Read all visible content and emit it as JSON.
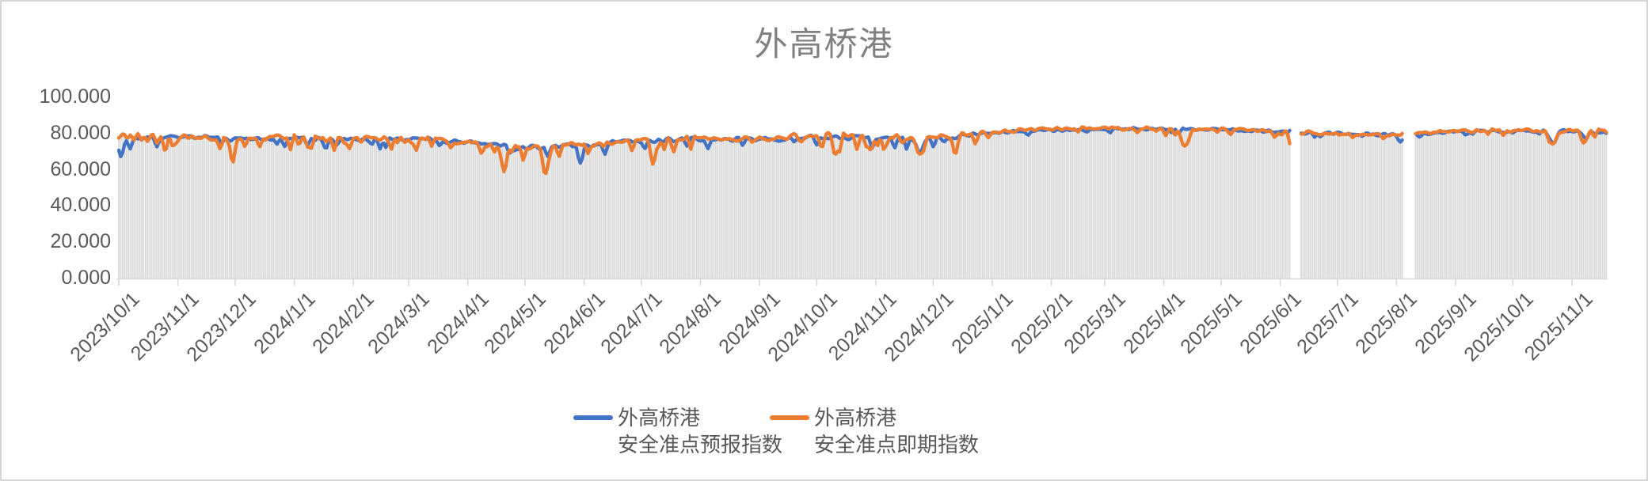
{
  "window": {
    "background": "#FFFFFF",
    "frame_border_color": "#D6D6D6"
  },
  "chart": {
    "title": "外高桥港",
    "title_color": "#808080",
    "axis_text_color": "#595959",
    "axis_line_color": "#D9D9D9",
    "bar_color": "#D9D9D9",
    "plot_background": "#FFFFFF"
  },
  "legend": {
    "items": [
      {
        "line1": "外高桥港",
        "line2": "安全准点预报指数",
        "color": "#4472C4"
      },
      {
        "line1": "外高桥港",
        "line2": "安全准点即期指数",
        "color": "#ED7D31"
      }
    ]
  },
  "chart_data": {
    "type": "line",
    "subtype": "two smoothed daily lines over gray daily columns",
    "title": "外高桥港",
    "xlabel": "",
    "ylabel": "",
    "ylim": [
      0,
      100
    ],
    "grid": "off",
    "legend_position": "bottom",
    "x_start": "2023/10/1",
    "x_end": "2025/11/19",
    "x_tick_labels": [
      "2023/10/1",
      "2023/11/1",
      "2023/12/1",
      "2024/1/1",
      "2024/2/1",
      "2024/3/1",
      "2024/4/1",
      "2024/5/1",
      "2024/6/1",
      "2024/7/1",
      "2024/8/1",
      "2024/9/1",
      "2024/10/1",
      "2024/11/1",
      "2024/12/1",
      "2025/1/1",
      "2025/2/1",
      "2025/3/1",
      "2025/4/1",
      "2025/5/1",
      "2025/6/1",
      "2025/7/1",
      "2025/8/1",
      "2025/9/1",
      "2025/10/1",
      "2025/11/1"
    ],
    "y_ticks": [
      {
        "value": 0,
        "label": "0.000"
      },
      {
        "value": 20,
        "label": "20.000"
      },
      {
        "value": 40,
        "label": "40.000"
      },
      {
        "value": 60,
        "label": "60.000"
      },
      {
        "value": 80,
        "label": "80.000"
      },
      {
        "value": 100,
        "label": "100.000"
      }
    ],
    "gaps": [
      {
        "from": "2025/6/7",
        "to": "2025/6/11"
      },
      {
        "from": "2025/8/5",
        "to": "2025/8/10"
      }
    ],
    "series": [
      {
        "name": "外高桥港安全准点预报指数",
        "color": "#4472C4",
        "anchors": [
          [
            "2023/10/1",
            77
          ],
          [
            "2023/11/1",
            78
          ],
          [
            "2023/12/1",
            76.5
          ],
          [
            "2024/1/1",
            77
          ],
          [
            "2024/2/1",
            76
          ],
          [
            "2024/3/1",
            77
          ],
          [
            "2024/4/1",
            74.5
          ],
          [
            "2024/5/1",
            71.5
          ],
          [
            "2024/6/1",
            73
          ],
          [
            "2024/7/1",
            75.5
          ],
          [
            "2024/8/1",
            76.5
          ],
          [
            "2024/9/1",
            76
          ],
          [
            "2024/10/1",
            78
          ],
          [
            "2024/11/1",
            77
          ],
          [
            "2024/12/1",
            76.5
          ],
          [
            "2025/1/1",
            80
          ],
          [
            "2025/2/1",
            81.5
          ],
          [
            "2025/3/1",
            82
          ],
          [
            "2025/4/1",
            82
          ],
          [
            "2025/5/1",
            82
          ],
          [
            "2025/6/1",
            80.5
          ],
          [
            "2025/7/1",
            79.5
          ],
          [
            "2025/8/1",
            79
          ],
          [
            "2025/9/1",
            80.5
          ],
          [
            "2025/10/1",
            81
          ],
          [
            "2025/11/1",
            81
          ],
          [
            "2025/11/19",
            80.5
          ]
        ]
      },
      {
        "name": "外高桥港安全准点即期指数",
        "color": "#ED7D31",
        "anchors": [
          [
            "2023/10/1",
            78.5
          ],
          [
            "2023/11/1",
            78.5
          ],
          [
            "2023/12/1",
            77
          ],
          [
            "2024/1/1",
            77.5
          ],
          [
            "2024/2/1",
            76.5
          ],
          [
            "2024/3/1",
            77.5
          ],
          [
            "2024/4/1",
            74.5
          ],
          [
            "2024/5/1",
            71.5
          ],
          [
            "2024/6/1",
            73.5
          ],
          [
            "2024/7/1",
            76
          ],
          [
            "2024/8/1",
            77
          ],
          [
            "2024/9/1",
            76.5
          ],
          [
            "2024/10/1",
            78.5
          ],
          [
            "2024/11/1",
            77.5
          ],
          [
            "2024/12/1",
            77
          ],
          [
            "2025/1/1",
            80.5
          ],
          [
            "2025/2/1",
            82
          ],
          [
            "2025/3/1",
            82.5
          ],
          [
            "2025/4/1",
            82
          ],
          [
            "2025/5/1",
            82
          ],
          [
            "2025/6/1",
            80.5
          ],
          [
            "2025/7/1",
            79.5
          ],
          [
            "2025/8/1",
            79
          ],
          [
            "2025/9/1",
            81
          ],
          [
            "2025/10/1",
            81.5
          ],
          [
            "2025/11/1",
            81
          ],
          [
            "2025/11/19",
            81
          ]
        ]
      }
    ],
    "noise": {
      "seed": 20231001,
      "blue_amp_early": 1.7,
      "blue_amp_late": 1.1,
      "orange_amp_early": 2.1,
      "orange_amp_late": 1.3,
      "orange_dip_prob_early": 0.16,
      "orange_dip_depth_early": 13,
      "orange_dip_prob_late": 0.07,
      "orange_dip_depth_late": 4,
      "blue_dip_prob_early": 0.07,
      "blue_dip_depth_early": 9,
      "blue_dip_prob_late": 0.05,
      "blue_dip_depth_late": 3,
      "late_from": "2025/1/1"
    },
    "events": [
      {
        "date": "2023/10/2",
        "series": "blue",
        "depth": 13,
        "width": 2
      },
      {
        "date": "2024/4/20",
        "series": "orange",
        "depth": 16,
        "width": 2
      },
      {
        "date": "2024/5/12",
        "series": "orange",
        "depth": 15,
        "width": 2
      },
      {
        "date": "2024/11/24",
        "series": "both",
        "depth": 9,
        "width": 3
      },
      {
        "date": "2025/4/12",
        "series": "orange",
        "depth": 11,
        "width": 2
      },
      {
        "date": "2025/8/3",
        "series": "blue",
        "depth": 6,
        "width": 2
      },
      {
        "date": "2025/10/22",
        "series": "both",
        "depth": 8,
        "width": 3
      },
      {
        "date": "2025/11/8",
        "series": "both",
        "depth": 5,
        "width": 2
      }
    ],
    "columns": {
      "description": "light gray daily column behind the lines, one per day, reaching the upper line envelope",
      "color": "#D9D9D9"
    }
  }
}
